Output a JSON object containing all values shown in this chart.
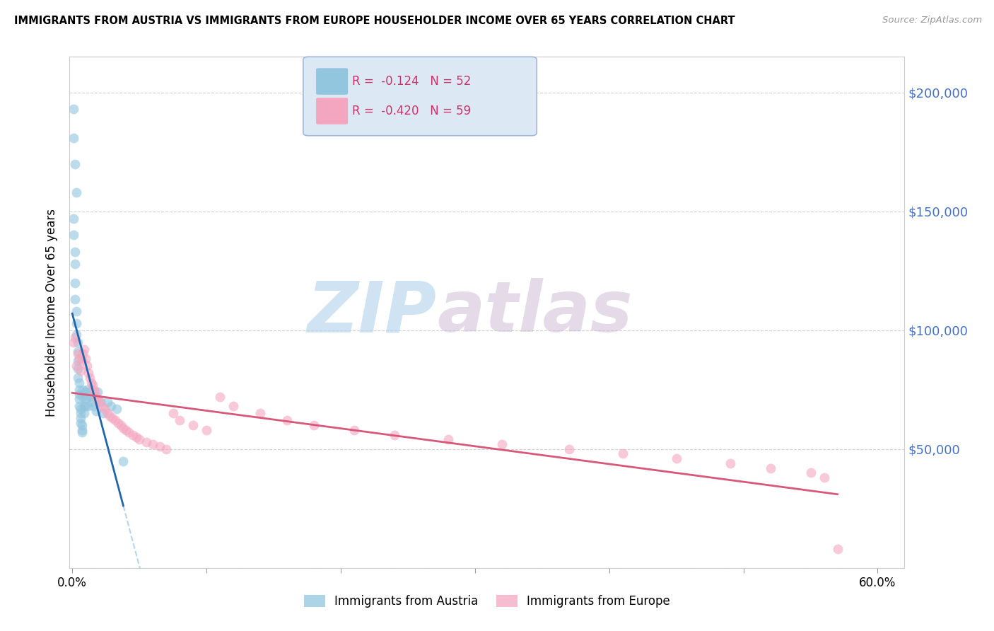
{
  "title": "IMMIGRANTS FROM AUSTRIA VS IMMIGRANTS FROM EUROPE HOUSEHOLDER INCOME OVER 65 YEARS CORRELATION CHART",
  "source": "Source: ZipAtlas.com",
  "ylabel": "Householder Income Over 65 years",
  "watermark_zip": "ZIP",
  "watermark_atlas": "atlas",
  "austria_R": -0.124,
  "austria_N": 52,
  "europe_R": -0.42,
  "europe_N": 59,
  "austria_color": "#92c5de",
  "europe_color": "#f4a6c0",
  "austria_line_color": "#2166ac",
  "europe_line_color": "#d6587a",
  "dashed_line_color": "#b8d4e8",
  "ylim": [
    0,
    215000
  ],
  "xlim": [
    -0.002,
    0.62
  ],
  "yticks": [
    0,
    50000,
    100000,
    150000,
    200000
  ],
  "ytick_labels": [
    "",
    "$50,000",
    "$100,000",
    "$150,000",
    "$200,000"
  ],
  "austria_x": [
    0.001,
    0.001,
    0.002,
    0.003,
    0.001,
    0.001,
    0.002,
    0.002,
    0.002,
    0.002,
    0.003,
    0.003,
    0.003,
    0.004,
    0.004,
    0.004,
    0.004,
    0.004,
    0.005,
    0.005,
    0.005,
    0.005,
    0.005,
    0.006,
    0.006,
    0.006,
    0.006,
    0.007,
    0.007,
    0.007,
    0.008,
    0.008,
    0.009,
    0.009,
    0.01,
    0.01,
    0.01,
    0.011,
    0.012,
    0.012,
    0.013,
    0.014,
    0.015,
    0.016,
    0.018,
    0.019,
    0.021,
    0.023,
    0.026,
    0.029,
    0.033,
    0.038
  ],
  "austria_y": [
    193000,
    181000,
    170000,
    158000,
    147000,
    140000,
    133000,
    128000,
    120000,
    113000,
    108000,
    103000,
    98000,
    95000,
    91000,
    87000,
    84000,
    80000,
    78000,
    75000,
    73000,
    71000,
    68000,
    67000,
    65000,
    63000,
    61000,
    60000,
    58000,
    57000,
    75000,
    72000,
    68000,
    65000,
    74000,
    71000,
    68000,
    75000,
    72000,
    68000,
    74000,
    72000,
    70000,
    68000,
    66000,
    74000,
    70000,
    65000,
    70000,
    68000,
    67000,
    45000
  ],
  "europe_x": [
    0.001,
    0.002,
    0.003,
    0.004,
    0.005,
    0.006,
    0.007,
    0.008,
    0.009,
    0.01,
    0.011,
    0.012,
    0.013,
    0.014,
    0.015,
    0.016,
    0.017,
    0.018,
    0.019,
    0.02,
    0.022,
    0.024,
    0.026,
    0.028,
    0.03,
    0.032,
    0.034,
    0.036,
    0.038,
    0.04,
    0.042,
    0.045,
    0.048,
    0.05,
    0.055,
    0.06,
    0.065,
    0.07,
    0.075,
    0.08,
    0.09,
    0.1,
    0.11,
    0.12,
    0.14,
    0.16,
    0.18,
    0.21,
    0.24,
    0.28,
    0.32,
    0.37,
    0.41,
    0.45,
    0.49,
    0.52,
    0.55,
    0.56,
    0.57
  ],
  "europe_y": [
    95000,
    97000,
    85000,
    90000,
    88000,
    83000,
    87000,
    90000,
    92000,
    88000,
    85000,
    82000,
    80000,
    78000,
    77000,
    75000,
    74000,
    72000,
    71000,
    70000,
    68000,
    67000,
    65000,
    64000,
    63000,
    62000,
    61000,
    60000,
    59000,
    58000,
    57000,
    56000,
    55000,
    54000,
    53000,
    52000,
    51000,
    50000,
    65000,
    62000,
    60000,
    58000,
    72000,
    68000,
    65000,
    62000,
    60000,
    58000,
    56000,
    54000,
    52000,
    50000,
    48000,
    46000,
    44000,
    42000,
    40000,
    38000,
    8000
  ]
}
